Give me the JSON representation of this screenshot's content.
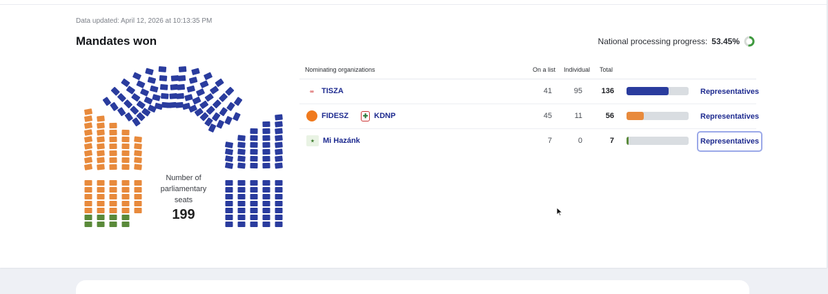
{
  "header": {
    "updated": "Data updated: April 12, 2026 at 10:13:35 PM",
    "title": "Mandates won",
    "progress_label": "National processing progress:",
    "progress_value": "53.45%",
    "progress_fraction": 0.5345
  },
  "hemicycle": {
    "label": "Number of parliamentary seats",
    "total": "199",
    "colors": {
      "tisza": "#2a3c9e",
      "fidesz": "#e88a3c",
      "mihazank": "#5a8a3a"
    },
    "seats": {
      "tisza": 136,
      "fidesz": 56,
      "mihazank": 7
    }
  },
  "table": {
    "headers": {
      "org": "Nominating organizations",
      "list": "On a list",
      "individual": "Individual",
      "total": "Total"
    },
    "rows": [
      {
        "orgs": [
          {
            "name": "TISZA",
            "logo": "tisza-logo",
            "logo_text": "TISZA"
          }
        ],
        "list": "41",
        "individual": "95",
        "total": "136",
        "share": 0.68,
        "color": "#2a3c9e",
        "link": "Representatives"
      },
      {
        "orgs": [
          {
            "name": "FIDESZ",
            "logo": "fidesz-logo",
            "logo_text": ""
          },
          {
            "name": "KDNP",
            "logo": "kdnp-logo",
            "logo_text": ""
          }
        ],
        "list": "45",
        "individual": "11",
        "total": "56",
        "share": 0.28,
        "color": "#e88a3c",
        "link": "Representatives"
      },
      {
        "orgs": [
          {
            "name": "Mi Hazánk",
            "logo": "mihazank-logo",
            "logo_text": "Mi Hazánk"
          }
        ],
        "list": "7",
        "individual": "0",
        "total": "7",
        "share": 0.035,
        "color": "#5a8a3a",
        "link": "Representatives"
      }
    ]
  }
}
